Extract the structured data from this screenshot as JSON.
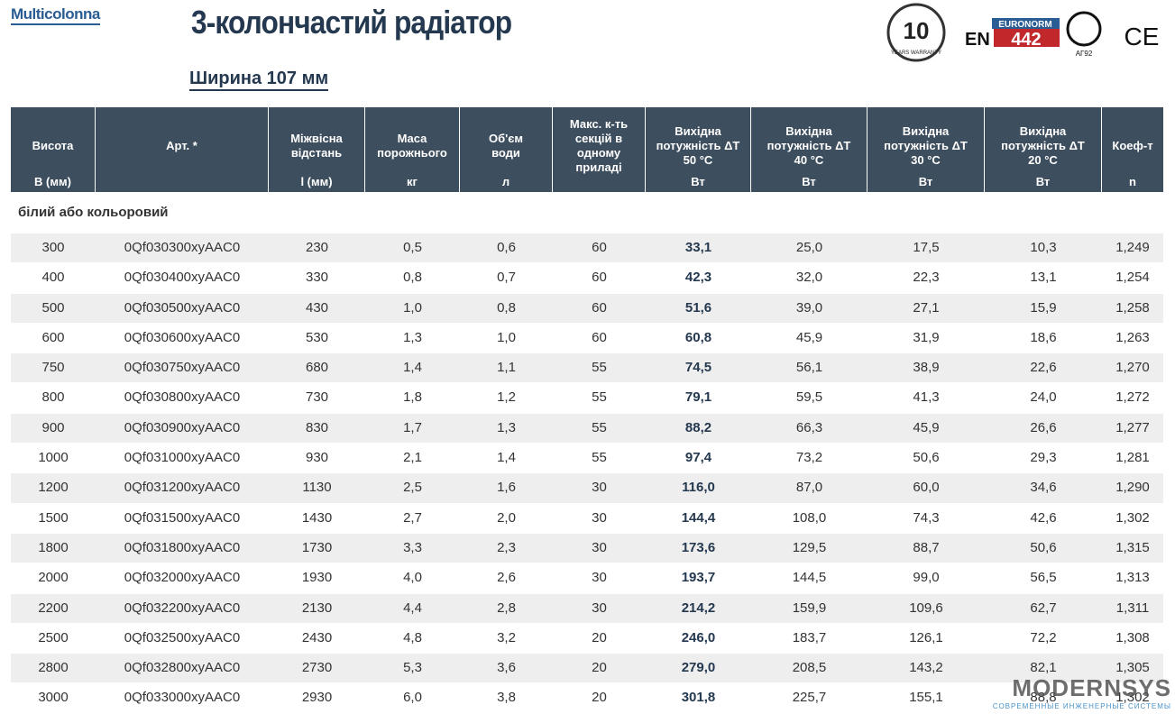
{
  "header": {
    "brand": "Multicolonna",
    "title": "3-колончастий радіатор",
    "subtitle": "Ширина 107 мм",
    "logos": {
      "warranty_number": "10",
      "warranty_text": "YEARS WARRANTY",
      "euronorm": "EURONORM",
      "en": "EN",
      "norm": "442",
      "cert": "АГ92",
      "ce": "CE"
    }
  },
  "table": {
    "columns": [
      {
        "label": "Висота",
        "unit": "В (мм)"
      },
      {
        "label": "Арт. *"
      },
      {
        "label": "Міжвісна\nвідстань",
        "unit": "l (мм)"
      },
      {
        "label": "Маса\nпорожнього",
        "unit": "кг"
      },
      {
        "label": "Об'єм\nводи",
        "unit": "л"
      },
      {
        "label": "Макс. к-ть\nсекцій в\nодному\nприладі"
      },
      {
        "label": "Вихідна\nпотужність ΔT\n50 °C",
        "unit": "Вт"
      },
      {
        "label": "Вихідна\nпотужність ΔT\n40 °C",
        "unit": "Вт"
      },
      {
        "label": "Вихідна\nпотужність ΔT\n30 °C",
        "unit": "Вт"
      },
      {
        "label": "Вихідна\nпотужність ΔT\n20 °C",
        "unit": "Вт"
      },
      {
        "label": "Коеф-т",
        "unit": "n"
      }
    ],
    "section": "білий або кольоровий",
    "rows": [
      [
        "300",
        "0Qf030300xyAAC0",
        "230",
        "0,5",
        "0,6",
        "60",
        "33,1",
        "25,0",
        "17,5",
        "10,3",
        "1,249"
      ],
      [
        "400",
        "0Qf030400xyAAC0",
        "330",
        "0,8",
        "0,7",
        "60",
        "42,3",
        "32,0",
        "22,3",
        "13,1",
        "1,254"
      ],
      [
        "500",
        "0Qf030500xyAAC0",
        "430",
        "1,0",
        "0,8",
        "60",
        "51,6",
        "39,0",
        "27,1",
        "15,9",
        "1,258"
      ],
      [
        "600",
        "0Qf030600xyAAC0",
        "530",
        "1,3",
        "1,0",
        "60",
        "60,8",
        "45,9",
        "31,9",
        "18,6",
        "1,263"
      ],
      [
        "750",
        "0Qf030750xyAAC0",
        "680",
        "1,4",
        "1,1",
        "55",
        "74,5",
        "56,1",
        "38,9",
        "22,6",
        "1,270"
      ],
      [
        "800",
        "0Qf030800xyAAC0",
        "730",
        "1,8",
        "1,2",
        "55",
        "79,1",
        "59,5",
        "41,3",
        "24,0",
        "1,272"
      ],
      [
        "900",
        "0Qf030900xyAAC0",
        "830",
        "1,7",
        "1,3",
        "55",
        "88,2",
        "66,3",
        "45,9",
        "26,6",
        "1,277"
      ],
      [
        "1000",
        "0Qf031000xyAAC0",
        "930",
        "2,1",
        "1,4",
        "55",
        "97,4",
        "73,2",
        "50,6",
        "29,3",
        "1,281"
      ],
      [
        "1200",
        "0Qf031200xyAAC0",
        "1130",
        "2,5",
        "1,6",
        "30",
        "116,0",
        "87,0",
        "60,0",
        "34,6",
        "1,290"
      ],
      [
        "1500",
        "0Qf031500xyAAC0",
        "1430",
        "2,7",
        "2,0",
        "30",
        "144,4",
        "108,0",
        "74,3",
        "42,6",
        "1,302"
      ],
      [
        "1800",
        "0Qf031800xyAAC0",
        "1730",
        "3,3",
        "2,3",
        "30",
        "173,6",
        "129,5",
        "88,7",
        "50,6",
        "1,315"
      ],
      [
        "2000",
        "0Qf032000xyAAC0",
        "1930",
        "4,0",
        "2,6",
        "30",
        "193,7",
        "144,5",
        "99,0",
        "56,5",
        "1,313"
      ],
      [
        "2200",
        "0Qf032200xyAAC0",
        "2130",
        "4,4",
        "2,8",
        "30",
        "214,2",
        "159,9",
        "109,6",
        "62,7",
        "1,311"
      ],
      [
        "2500",
        "0Qf032500xyAAC0",
        "2430",
        "4,8",
        "3,2",
        "20",
        "246,0",
        "183,7",
        "126,1",
        "72,2",
        "1,308"
      ],
      [
        "2800",
        "0Qf032800xyAAC0",
        "2730",
        "5,3",
        "3,6",
        "20",
        "279,0",
        "208,5",
        "143,2",
        "82,1",
        "1,305"
      ],
      [
        "3000",
        "0Qf033000xyAAC0",
        "2930",
        "6,0",
        "3,8",
        "20",
        "301,8",
        "225,7",
        "155,1",
        "88,8",
        "1,302"
      ]
    ]
  },
  "watermark": {
    "name": "MODERNSYS",
    "tagline": "СОВРЕМЕННЫЕ ИНЖЕНЕРНЫЕ СИСТЕМЫ"
  }
}
